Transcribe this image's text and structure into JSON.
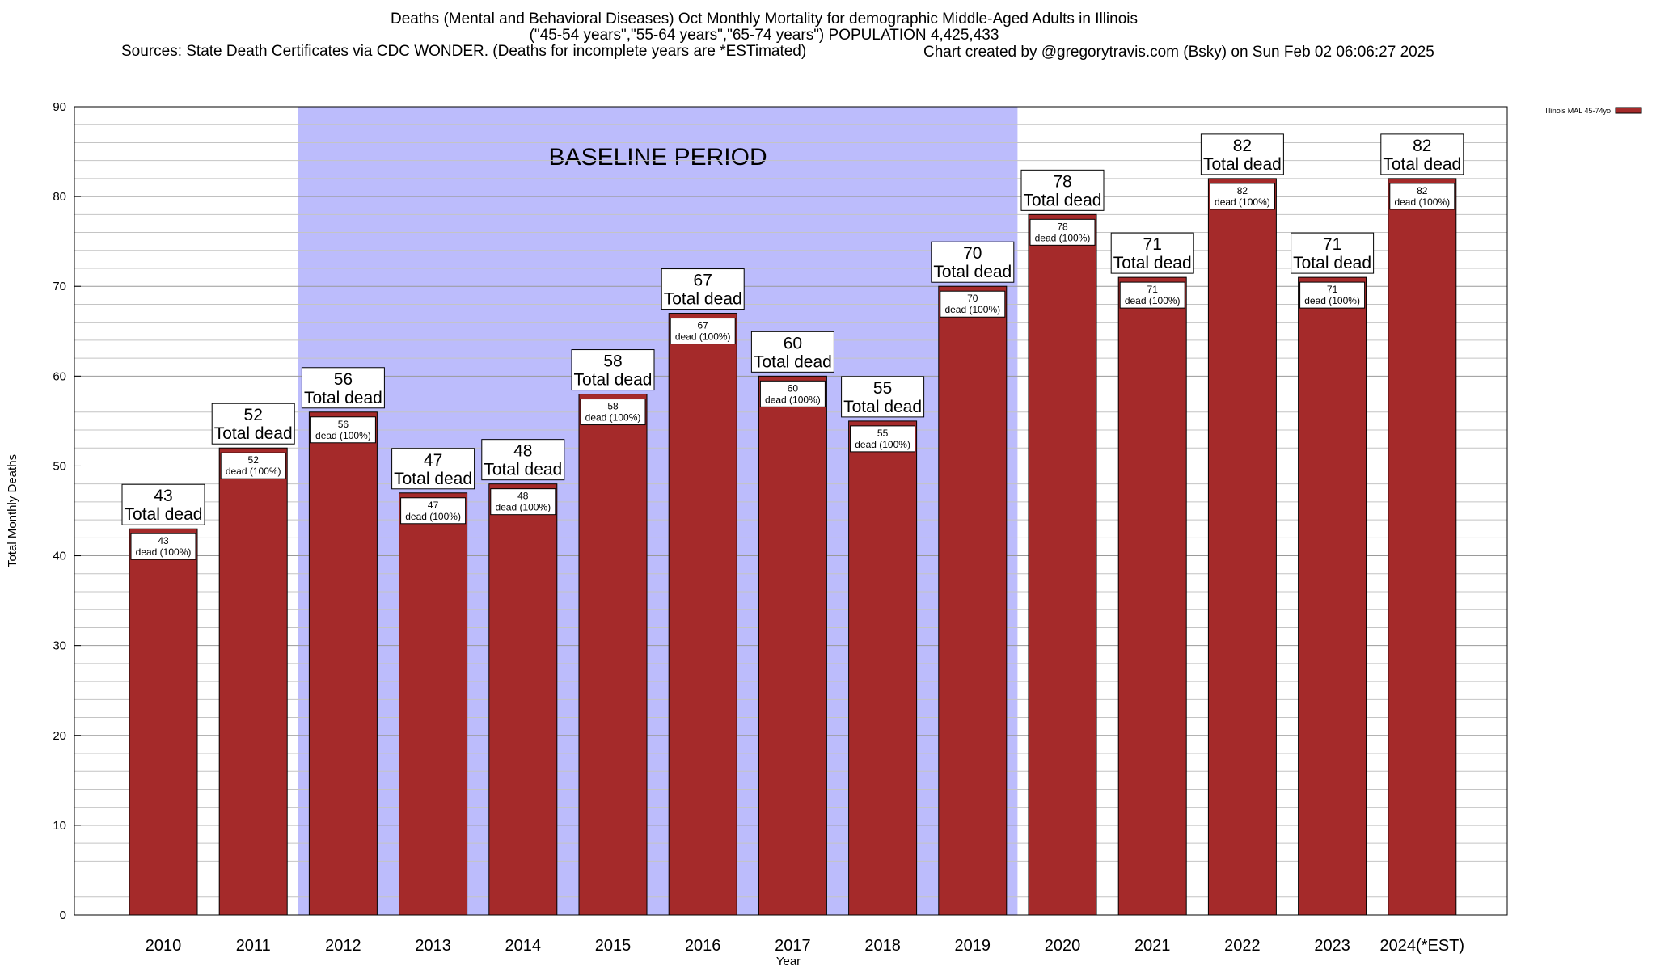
{
  "chart_data": {
    "type": "bar",
    "title_lines": [
      "Deaths (Mental and Behavioral Diseases) Oct Monthly Mortality for demographic Middle-Aged Adults in Illinois",
      "(\"45-54 years\",\"55-64 years\",\"65-74 years\") POPULATION 4,425,433"
    ],
    "sources": "Sources: State Death Certificates via CDC WONDER. (Deaths for incomplete years are *ESTimated)",
    "credit": "Chart created by @gregorytravis.com (Bsky) on Sun Feb 02 06:06:27 2025",
    "xlabel": "Year",
    "ylabel": "Total Monthly Deaths",
    "ylim": [
      0,
      90
    ],
    "y_ticks": [
      0,
      10,
      20,
      30,
      40,
      50,
      60,
      70,
      80,
      90
    ],
    "grid": true,
    "legend_placement": "top-right, outside plot",
    "categories": [
      "2010",
      "2011",
      "2012",
      "2013",
      "2014",
      "2015",
      "2016",
      "2017",
      "2018",
      "2019",
      "2020",
      "2021",
      "2022",
      "2023",
      "2024(*EST)"
    ],
    "series": [
      {
        "name": "Illinois MAL 45-74yo",
        "color": "#a52a2a",
        "values": [
          43,
          52,
          56,
          47,
          48,
          58,
          67,
          60,
          55,
          70,
          78,
          71,
          82,
          71,
          82
        ]
      }
    ],
    "top_label_suffix": "Total dead",
    "inner_label_suffix": "dead (100%)",
    "baseline_period": {
      "label": "BASELINE PERIOD",
      "from": "2012",
      "to": "2019",
      "color": "#bcbcfc"
    }
  }
}
